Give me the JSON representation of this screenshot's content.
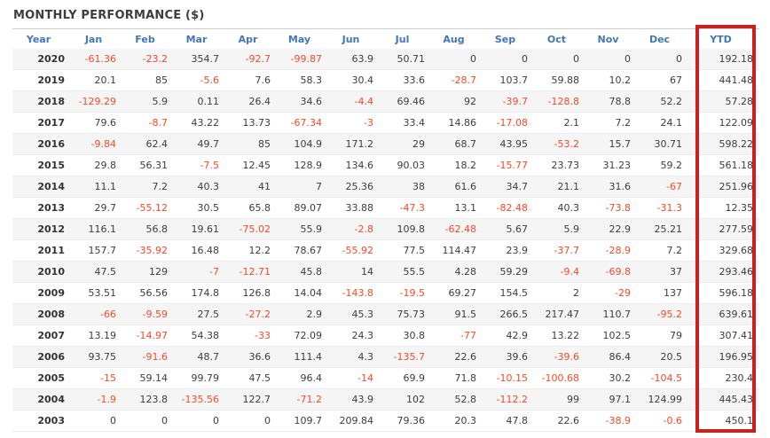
{
  "title": "MONTHLY PERFORMANCE ($)",
  "table": {
    "columns": [
      "Year",
      "Jan",
      "Feb",
      "Mar",
      "Apr",
      "May",
      "Jun",
      "Jul",
      "Aug",
      "Sep",
      "Oct",
      "Nov",
      "Dec",
      "YTD"
    ],
    "rows": [
      {
        "year": "2020",
        "values": [
          "-61.36",
          "-23.2",
          "354.7",
          "-92.7",
          "-99.87",
          "63.9",
          "50.71",
          "0",
          "0",
          "0",
          "0",
          "0"
        ],
        "ytd": "192.18"
      },
      {
        "year": "2019",
        "values": [
          "20.1",
          "85",
          "-5.6",
          "7.6",
          "58.3",
          "30.4",
          "33.6",
          "-28.7",
          "103.7",
          "59.88",
          "10.2",
          "67"
        ],
        "ytd": "441.48"
      },
      {
        "year": "2018",
        "values": [
          "-129.29",
          "5.9",
          "0.11",
          "26.4",
          "34.6",
          "-4.4",
          "69.46",
          "92",
          "-39.7",
          "-128.8",
          "78.8",
          "52.2"
        ],
        "ytd": "57.28"
      },
      {
        "year": "2017",
        "values": [
          "79.6",
          "-8.7",
          "43.22",
          "13.73",
          "-67.34",
          "-3",
          "33.4",
          "14.86",
          "-17.08",
          "2.1",
          "7.2",
          "24.1"
        ],
        "ytd": "122.09"
      },
      {
        "year": "2016",
        "values": [
          "-9.84",
          "62.4",
          "49.7",
          "85",
          "104.9",
          "171.2",
          "29",
          "68.7",
          "43.95",
          "-53.2",
          "15.7",
          "30.71"
        ],
        "ytd": "598.22"
      },
      {
        "year": "2015",
        "values": [
          "29.8",
          "56.31",
          "-7.5",
          "12.45",
          "128.9",
          "134.6",
          "90.03",
          "18.2",
          "-15.77",
          "23.73",
          "31.23",
          "59.2"
        ],
        "ytd": "561.18"
      },
      {
        "year": "2014",
        "values": [
          "11.1",
          "7.2",
          "40.3",
          "41",
          "7",
          "25.36",
          "38",
          "61.6",
          "34.7",
          "21.1",
          "31.6",
          "-67"
        ],
        "ytd": "251.96"
      },
      {
        "year": "2013",
        "values": [
          "29.7",
          "-55.12",
          "30.5",
          "65.8",
          "89.07",
          "33.88",
          "-47.3",
          "13.1",
          "-82.48",
          "40.3",
          "-73.8",
          "-31.3"
        ],
        "ytd": "12.35"
      },
      {
        "year": "2012",
        "values": [
          "116.1",
          "56.8",
          "19.61",
          "-75.02",
          "55.9",
          "-2.8",
          "109.8",
          "-62.48",
          "5.67",
          "5.9",
          "22.9",
          "25.21"
        ],
        "ytd": "277.59"
      },
      {
        "year": "2011",
        "values": [
          "157.7",
          "-35.92",
          "16.48",
          "12.2",
          "78.67",
          "-55.92",
          "77.5",
          "114.47",
          "23.9",
          "-37.7",
          "-28.9",
          "7.2"
        ],
        "ytd": "329.68"
      },
      {
        "year": "2010",
        "values": [
          "47.5",
          "129",
          "-7",
          "-12.71",
          "45.8",
          "14",
          "55.5",
          "4.28",
          "59.29",
          "-9.4",
          "-69.8",
          "37"
        ],
        "ytd": "293.46"
      },
      {
        "year": "2009",
        "values": [
          "53.51",
          "56.56",
          "174.8",
          "126.8",
          "14.04",
          "-143.8",
          "-19.5",
          "69.27",
          "154.5",
          "2",
          "-29",
          "137"
        ],
        "ytd": "596.18"
      },
      {
        "year": "2008",
        "values": [
          "-66",
          "-9.59",
          "27.5",
          "-27.2",
          "2.9",
          "45.3",
          "75.73",
          "91.5",
          "266.5",
          "217.47",
          "110.7",
          "-95.2"
        ],
        "ytd": "639.61"
      },
      {
        "year": "2007",
        "values": [
          "13.19",
          "-14.97",
          "54.38",
          "-33",
          "72.09",
          "24.3",
          "30.8",
          "-77",
          "42.9",
          "13.22",
          "102.5",
          "79"
        ],
        "ytd": "307.41"
      },
      {
        "year": "2006",
        "values": [
          "93.75",
          "-91.6",
          "48.7",
          "36.6",
          "111.4",
          "4.3",
          "-135.7",
          "22.6",
          "39.6",
          "-39.6",
          "86.4",
          "20.5"
        ],
        "ytd": "196.95"
      },
      {
        "year": "2005",
        "values": [
          "-15",
          "59.14",
          "99.79",
          "47.5",
          "96.4",
          "-14",
          "69.9",
          "71.8",
          "-10.15",
          "-100.68",
          "30.2",
          "-104.5"
        ],
        "ytd": "230.4"
      },
      {
        "year": "2004",
        "values": [
          "-1.9",
          "123.8",
          "-135.56",
          "122.7",
          "-71.2",
          "43.9",
          "102",
          "52.8",
          "-112.2",
          "99",
          "97.1",
          "124.99"
        ],
        "ytd": "445.43"
      },
      {
        "year": "2003",
        "values": [
          "0",
          "0",
          "0",
          "0",
          "109.7",
          "209.84",
          "79.36",
          "20.3",
          "47.8",
          "22.6",
          "-38.9",
          "-0.6"
        ],
        "ytd": "450.1"
      }
    ]
  },
  "annotations": {
    "ytd_highlight": "YTD column highlighted with red rectangle"
  },
  "colors": {
    "header_text": "#4277b6",
    "positive": "#3c3c3c",
    "negative": "#fa4a26",
    "stripe_bg": "#f5f5f5",
    "highlight_border": "#c9211d",
    "title_text": "#3d3d3d"
  }
}
